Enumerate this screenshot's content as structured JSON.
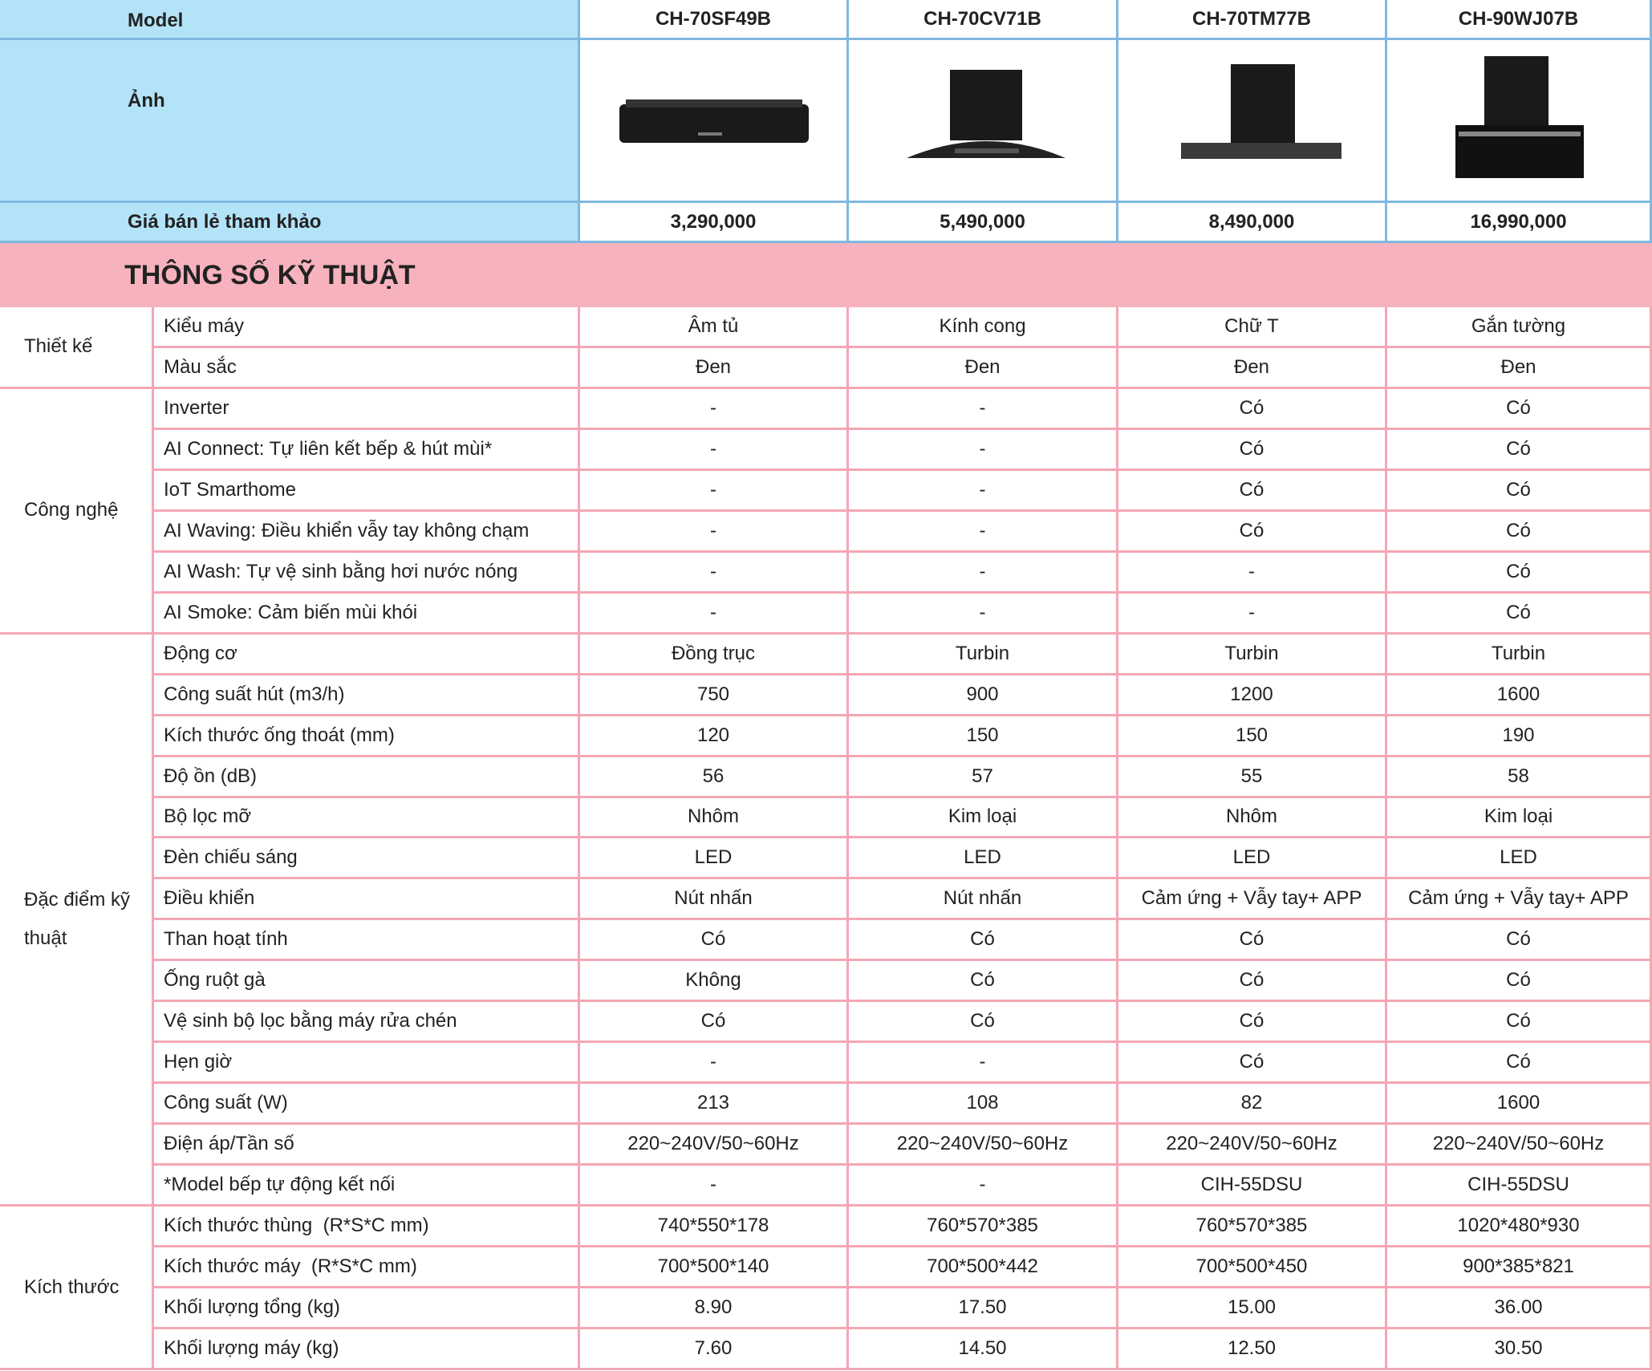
{
  "header": {
    "model_label": "Model",
    "image_label": "Ảnh",
    "price_label": "Giá bán lẻ tham khảo",
    "models": [
      "CH-70SF49B",
      "CH-70CV71B",
      "CH-70TM77B",
      "CH-90WJ07B"
    ],
    "prices": [
      "3,290,000",
      "5,490,000",
      "8,490,000",
      "16,990,000"
    ]
  },
  "section_title": "THÔNG SỐ KỸ THUẬT",
  "groups": [
    {
      "name": "Thiết kế",
      "rows": [
        {
          "feature": "Kiểu máy",
          "values": [
            "Âm tủ",
            "Kính cong",
            "Chữ T",
            "Gắn tường"
          ]
        },
        {
          "feature": "Màu sắc",
          "values": [
            "Đen",
            "Đen",
            "Đen",
            "Đen"
          ]
        }
      ]
    },
    {
      "name": "Công nghệ",
      "rows": [
        {
          "feature": "Inverter",
          "values": [
            "-",
            "-",
            "Có",
            "Có"
          ]
        },
        {
          "feature": "AI Connect: Tự liên kết bếp & hút mùi*",
          "values": [
            "-",
            "-",
            "Có",
            "Có"
          ]
        },
        {
          "feature": "IoT Smarthome",
          "values": [
            "-",
            "-",
            "Có",
            "Có"
          ]
        },
        {
          "feature": "AI Waving: Điều khiển vẫy tay không chạm",
          "values": [
            "-",
            "-",
            "Có",
            "Có"
          ]
        },
        {
          "feature": "AI Wash: Tự vệ sinh bằng hơi nước nóng",
          "values": [
            "-",
            "-",
            "-",
            "Có"
          ]
        },
        {
          "feature": "AI Smoke: Cảm biến mùi khói",
          "values": [
            "-",
            "-",
            "-",
            "Có"
          ]
        }
      ]
    },
    {
      "name": "Đặc điểm kỹ thuật",
      "rows": [
        {
          "feature": "Động cơ",
          "values": [
            "Đồng trục",
            "Turbin",
            "Turbin",
            "Turbin"
          ]
        },
        {
          "feature": "Công suất hút (m3/h)",
          "values": [
            "750",
            "900",
            "1200",
            "1600"
          ]
        },
        {
          "feature": "Kích thước ống thoát (mm)",
          "values": [
            "120",
            "150",
            "150",
            "190"
          ]
        },
        {
          "feature": "Độ ồn (dB)",
          "values": [
            "56",
            "57",
            "55",
            "58"
          ]
        },
        {
          "feature": "Bộ lọc mỡ",
          "values": [
            "Nhôm",
            "Kim loại",
            "Nhôm",
            "Kim loại"
          ]
        },
        {
          "feature": "Đèn chiếu sáng",
          "values": [
            "LED",
            "LED",
            "LED",
            "LED"
          ]
        },
        {
          "feature": "Điều khiển",
          "values": [
            "Nút nhấn",
            "Nút nhấn",
            "Cảm ứng + Vẫy tay+ APP",
            "Cảm ứng + Vẫy tay+ APP"
          ]
        },
        {
          "feature": "Than hoạt tính",
          "values": [
            "Có",
            "Có",
            "Có",
            "Có"
          ]
        },
        {
          "feature": "Ống ruột gà",
          "values": [
            "Không",
            "Có",
            "Có",
            "Có"
          ]
        },
        {
          "feature": "Vệ sinh bộ lọc bằng máy rửa chén",
          "values": [
            "Có",
            "Có",
            "Có",
            "Có"
          ]
        },
        {
          "feature": "Hẹn giờ",
          "values": [
            "-",
            "-",
            "Có",
            "Có"
          ]
        },
        {
          "feature": "Công suất (W)",
          "values": [
            "213",
            "108",
            "82",
            "1600"
          ]
        },
        {
          "feature": "Điện áp/Tần số",
          "values": [
            "220~240V/50~60Hz",
            "220~240V/50~60Hz",
            "220~240V/50~60Hz",
            "220~240V/50~60Hz"
          ]
        },
        {
          "feature": "*Model bếp tự động kết nối",
          "values": [
            "-",
            "-",
            "CIH-55DSU",
            "CIH-55DSU"
          ]
        }
      ]
    },
    {
      "name": "Kích thước",
      "rows": [
        {
          "feature": "Kích thước thùng  (R*S*C mm)",
          "values": [
            "740*550*178",
            "760*570*385",
            "760*570*385",
            "1020*480*930"
          ]
        },
        {
          "feature": "Kích thước máy  (R*S*C mm)",
          "values": [
            "700*500*140",
            "700*500*442",
            "700*500*450",
            "900*385*821"
          ]
        },
        {
          "feature": "Khối lượng tổng (kg)",
          "values": [
            "8.90",
            "17.50",
            "15.00",
            "36.00"
          ]
        },
        {
          "feature": "Khối lượng máy (kg)",
          "values": [
            "7.60",
            "14.50",
            "12.50",
            "30.50"
          ]
        }
      ]
    }
  ]
}
